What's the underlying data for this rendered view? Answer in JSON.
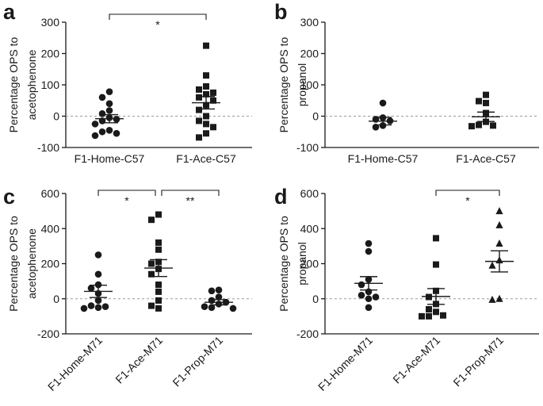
{
  "chart_data": [
    {
      "panel": "a",
      "type": "scatter",
      "ylabel": [
        "Percentage OPS to",
        "acetophenone"
      ],
      "ylim": [
        -100,
        300
      ],
      "yticks": [
        -100,
        0,
        100,
        200,
        300
      ],
      "categories": [
        "F1-Home-C57",
        "F1-Ace-C57"
      ],
      "markers": [
        "circle",
        "square"
      ],
      "rotated_labels": false,
      "groups": [
        {
          "name": "F1-Home-C57",
          "mean": -8,
          "sem": 13,
          "values": [
            78,
            60,
            40,
            18,
            8,
            -5,
            -10,
            -15,
            -25,
            -45,
            -50,
            -55,
            -62
          ]
        },
        {
          "name": "F1-Ace-C57",
          "mean": 43,
          "sem": 20,
          "values": [
            225,
            130,
            95,
            85,
            75,
            70,
            60,
            50,
            35,
            20,
            0,
            -15,
            -25,
            -35,
            -55,
            -68
          ]
        }
      ],
      "significance": [
        {
          "from": 0,
          "to": 1,
          "label": "*",
          "y": 320
        }
      ]
    },
    {
      "panel": "b",
      "type": "scatter",
      "ylabel": [
        "Percentage OPS to",
        "propanol"
      ],
      "ylim": [
        -100,
        300
      ],
      "yticks": [
        -100,
        0,
        100,
        200,
        300
      ],
      "categories": [
        "F1-Home-C57",
        "F1-Ace-C57"
      ],
      "markers": [
        "circle",
        "square"
      ],
      "rotated_labels": false,
      "groups": [
        {
          "name": "F1-Home-C57",
          "mean": -16,
          "sem": 12,
          "values": [
            42,
            -5,
            -10,
            -15,
            -30,
            -35
          ]
        },
        {
          "name": "F1-Ace-C57",
          "mean": -2,
          "sem": 15,
          "values": [
            68,
            48,
            42,
            10,
            -18,
            -28,
            -30,
            -32
          ]
        }
      ],
      "significance": []
    },
    {
      "panel": "c",
      "type": "scatter",
      "ylabel": [
        "Percentage OPS to",
        "acetophenone"
      ],
      "ylim": [
        -200,
        600
      ],
      "yticks": [
        -200,
        0,
        200,
        400,
        600
      ],
      "categories": [
        "F1-Home-M71",
        "F1-Ace-M71",
        "F1-Prop-M71"
      ],
      "markers": [
        "circle",
        "square",
        "circle"
      ],
      "rotated_labels": true,
      "groups": [
        {
          "name": "F1-Home-M71",
          "mean": 42,
          "sem": 35,
          "values": [
            250,
            140,
            80,
            60,
            30,
            -10,
            -40,
            -45,
            -50,
            -55
          ]
        },
        {
          "name": "F1-Ace-M71",
          "mean": 175,
          "sem": 48,
          "values": [
            480,
            450,
            320,
            280,
            210,
            200,
            170,
            140,
            80,
            40,
            -10,
            -40,
            -55
          ]
        },
        {
          "name": "F1-Prop-M71",
          "mean": -20,
          "sem": 15,
          "values": [
            50,
            45,
            10,
            -10,
            -20,
            -30,
            -45,
            -50,
            -55
          ]
        }
      ],
      "significance": [
        {
          "from": 0,
          "to": 1,
          "label": "*",
          "y": 610
        },
        {
          "from": 1,
          "to": 2,
          "label": "**",
          "y": 610
        }
      ]
    },
    {
      "panel": "d",
      "type": "scatter",
      "ylabel": [
        "Percentage OPS to",
        "propanol"
      ],
      "ylim": [
        -200,
        600
      ],
      "yticks": [
        -200,
        0,
        200,
        400,
        600
      ],
      "categories": [
        "F1-Home-M71",
        "F1-Ace-M71",
        "F1-Prop-M71"
      ],
      "markers": [
        "circle",
        "square",
        "triangle"
      ],
      "rotated_labels": true,
      "groups": [
        {
          "name": "F1-Home-M71",
          "mean": 88,
          "sem": 38,
          "values": [
            315,
            270,
            110,
            80,
            40,
            20,
            10,
            0,
            -50
          ]
        },
        {
          "name": "F1-Ace-M71",
          "mean": 13,
          "sem": 45,
          "values": [
            345,
            195,
            45,
            10,
            -30,
            -60,
            -75,
            -95,
            -100,
            -100
          ]
        },
        {
          "name": "F1-Prop-M71",
          "mean": 213,
          "sem": 60,
          "values": [
            500,
            420,
            315,
            220,
            190,
            0,
            -5
          ]
        }
      ],
      "significance": [
        {
          "from": 1,
          "to": 2,
          "label": "*",
          "y": 610
        }
      ]
    }
  ]
}
